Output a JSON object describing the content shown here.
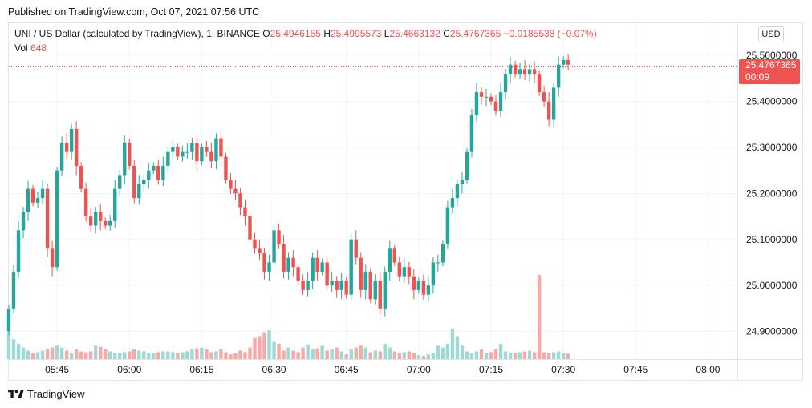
{
  "header": {
    "published": "Published on TradingView.com, Oct 07, 2021 07:56 UTC"
  },
  "legend": {
    "symbol": "UNI / US Dollar (calculated by TradingView), 1, BINANCE",
    "o_label": "O",
    "o_value": "25.4946155",
    "h_label": "H",
    "h_value": "25.4995573",
    "l_label": "L",
    "l_value": "25.4663132",
    "c_label": "C",
    "c_value": "25.4767365",
    "change": "−0.0185538 (−0.07%)",
    "vol_label": "Vol",
    "vol_value": "648"
  },
  "currency_button": "USD",
  "price_tag": {
    "price": "25.4767365",
    "countdown": "00:09"
  },
  "footer": {
    "brand": "TradingView"
  },
  "colors": {
    "up": "#26a69a",
    "down": "#ef5350",
    "up_vol": "#9ed9d3",
    "down_vol": "#f7a9a7"
  },
  "chart_data": {
    "type": "candlestick",
    "interval_minutes": 1,
    "x_ticks": [
      "05:45",
      "06:00",
      "06:15",
      "06:30",
      "06:45",
      "07:00",
      "07:15",
      "07:30",
      "07:45",
      "08:00"
    ],
    "y_ticks": [
      "25.5000000",
      "25.4000000",
      "25.3000000",
      "25.2000000",
      "25.1000000",
      "25.0000000",
      "24.9000000"
    ],
    "ylim": [
      24.84,
      25.57
    ],
    "last_price": 25.4767365,
    "close": [
      24.95,
      25.03,
      25.12,
      25.16,
      25.21,
      25.18,
      25.19,
      25.21,
      25.08,
      25.04,
      25.25,
      25.31,
      25.29,
      25.34,
      25.26,
      25.21,
      25.15,
      25.13,
      25.16,
      25.14,
      25.13,
      25.14,
      25.21,
      25.24,
      25.31,
      25.26,
      25.19,
      25.22,
      25.23,
      25.25,
      25.26,
      25.23,
      25.26,
      25.29,
      25.3,
      25.28,
      25.29,
      25.29,
      25.31,
      25.27,
      25.3,
      25.29,
      25.27,
      25.32,
      25.28,
      25.23,
      25.21,
      25.2,
      25.17,
      25.15,
      25.1,
      25.08,
      25.07,
      25.03,
      25.05,
      25.12,
      25.09,
      25.03,
      25.06,
      25.04,
      25.01,
      24.99,
      25.01,
      25.06,
      25.03,
      25.05,
      25.0,
      25.01,
      24.99,
      25.01,
      24.98,
      25.1,
      25.06,
      24.99,
      25.03,
      24.97,
      25.01,
      24.95,
      25.03,
      25.08,
      25.05,
      25.02,
      25.04,
      25.02,
      24.99,
      25.01,
      24.98,
      25.0,
      25.05,
      25.05,
      25.09,
      25.17,
      25.19,
      25.22,
      25.23,
      25.29,
      25.37,
      25.42,
      25.41,
      25.41,
      25.4,
      25.38,
      25.42,
      25.46,
      25.48,
      25.46,
      25.47,
      25.46,
      25.47,
      25.46,
      25.42,
      25.4,
      25.36,
      25.43,
      25.48,
      25.49,
      25.48
    ],
    "volume": [
      70,
      52,
      40,
      30,
      22,
      15,
      18,
      22,
      25,
      30,
      35,
      30,
      22,
      15,
      25,
      20,
      18,
      20,
      35,
      32,
      25,
      20,
      15,
      15,
      18,
      20,
      25,
      22,
      20,
      15,
      15,
      18,
      20,
      20,
      18,
      15,
      18,
      20,
      25,
      28,
      30,
      25,
      18,
      20,
      25,
      18,
      12,
      15,
      22,
      18,
      30,
      55,
      60,
      70,
      75,
      45,
      40,
      22,
      30,
      22,
      18,
      30,
      38,
      25,
      28,
      35,
      22,
      25,
      30,
      20,
      12,
      25,
      30,
      35,
      30,
      18,
      22,
      20,
      40,
      30,
      20,
      15,
      18,
      20,
      15,
      10,
      8,
      12,
      15,
      35,
      30,
      40,
      80,
      60,
      35,
      20,
      15,
      20,
      25,
      15,
      18,
      25,
      40,
      20,
      15,
      15,
      18,
      20,
      22,
      18,
      220,
      18,
      15,
      18,
      20,
      15,
      14
    ]
  }
}
